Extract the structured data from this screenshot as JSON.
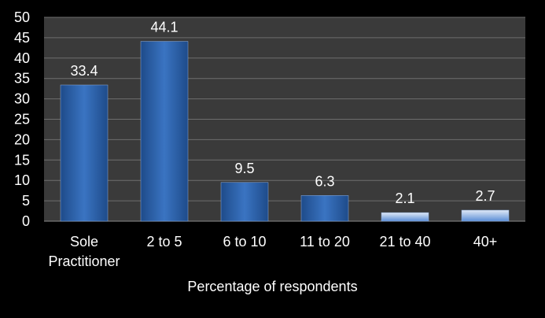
{
  "chart_data": {
    "type": "bar",
    "categories": [
      "Sole Practitioner",
      "2 to 5",
      "6 to 10",
      "11 to 20",
      "21 to 40",
      "40+"
    ],
    "values": [
      33.4,
      44.1,
      9.5,
      6.3,
      2.1,
      2.7
    ],
    "data_labels": [
      "33.4",
      "44.1",
      "9.5",
      "6.3",
      "2.1",
      "2.7"
    ],
    "title": "",
    "xlabel": "Percentage of respondents",
    "ylabel": "",
    "ylim": [
      0,
      50
    ],
    "y_ticks": [
      0,
      5,
      10,
      15,
      20,
      25,
      30,
      35,
      40,
      45,
      50
    ],
    "grid": true,
    "legend": "none"
  },
  "colors": {
    "background": "#000000",
    "plot_area": "#3a3a3a",
    "gridline": "#6e6e6e",
    "text": "#ffffff",
    "bar_dark": "#1e4b8a",
    "bar_mid": "#3a74c2",
    "bar_light": "#5b8ed6",
    "bar_pale": "#dfe8f6"
  }
}
